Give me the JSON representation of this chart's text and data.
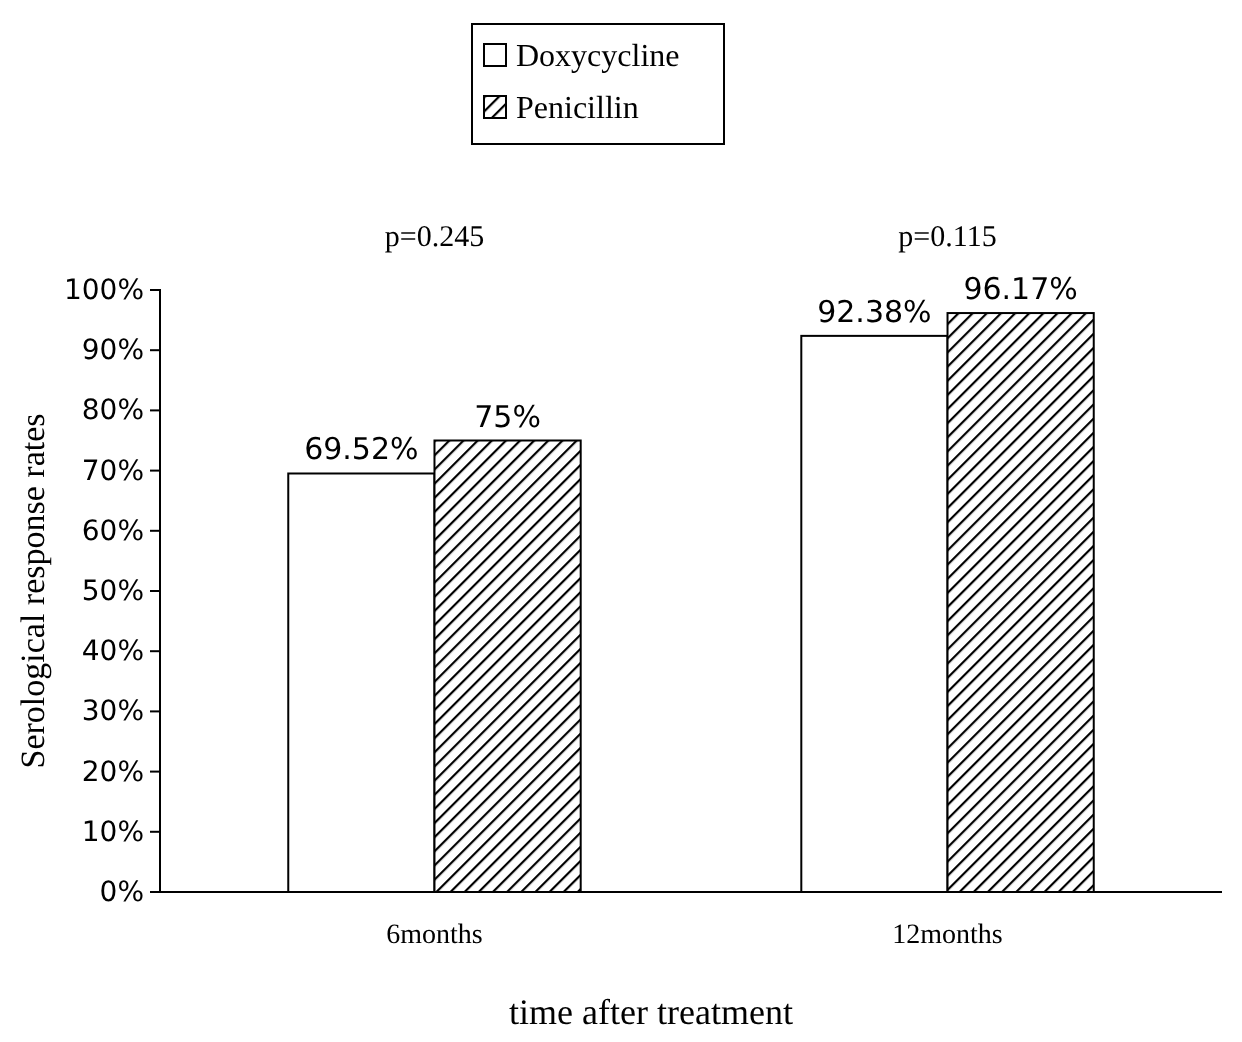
{
  "chart_data": {
    "type": "bar",
    "xlabel": "time after treatment",
    "ylabel": "Serological response rates",
    "categories": [
      "6months",
      "12months"
    ],
    "series": [
      {
        "name": "Doxycycline",
        "color": "#ffffff",
        "values": [
          69.52,
          92.38
        ],
        "value_labels": [
          "69.52%",
          "92.38%"
        ]
      },
      {
        "name": "Penicillin",
        "color": "#000000",
        "values": [
          75,
          96.17
        ],
        "value_labels": [
          "75%",
          "96.17%"
        ]
      }
    ],
    "ylim": [
      0,
      100
    ],
    "yticks": [
      {
        "value": 0,
        "label": "0%"
      },
      {
        "value": 10,
        "label": "10%"
      },
      {
        "value": 20,
        "label": "20%"
      },
      {
        "value": 30,
        "label": "30%"
      },
      {
        "value": 40,
        "label": "40%"
      },
      {
        "value": 50,
        "label": "50%"
      },
      {
        "value": 60,
        "label": "60%"
      },
      {
        "value": 70,
        "label": "70%"
      },
      {
        "value": 80,
        "label": "80%"
      },
      {
        "value": 90,
        "label": "90%"
      },
      {
        "value": 100,
        "label": "100%"
      }
    ],
    "annotations": [
      "p=0.245",
      "p=0.115"
    ],
    "grid": false,
    "legend": "top"
  }
}
